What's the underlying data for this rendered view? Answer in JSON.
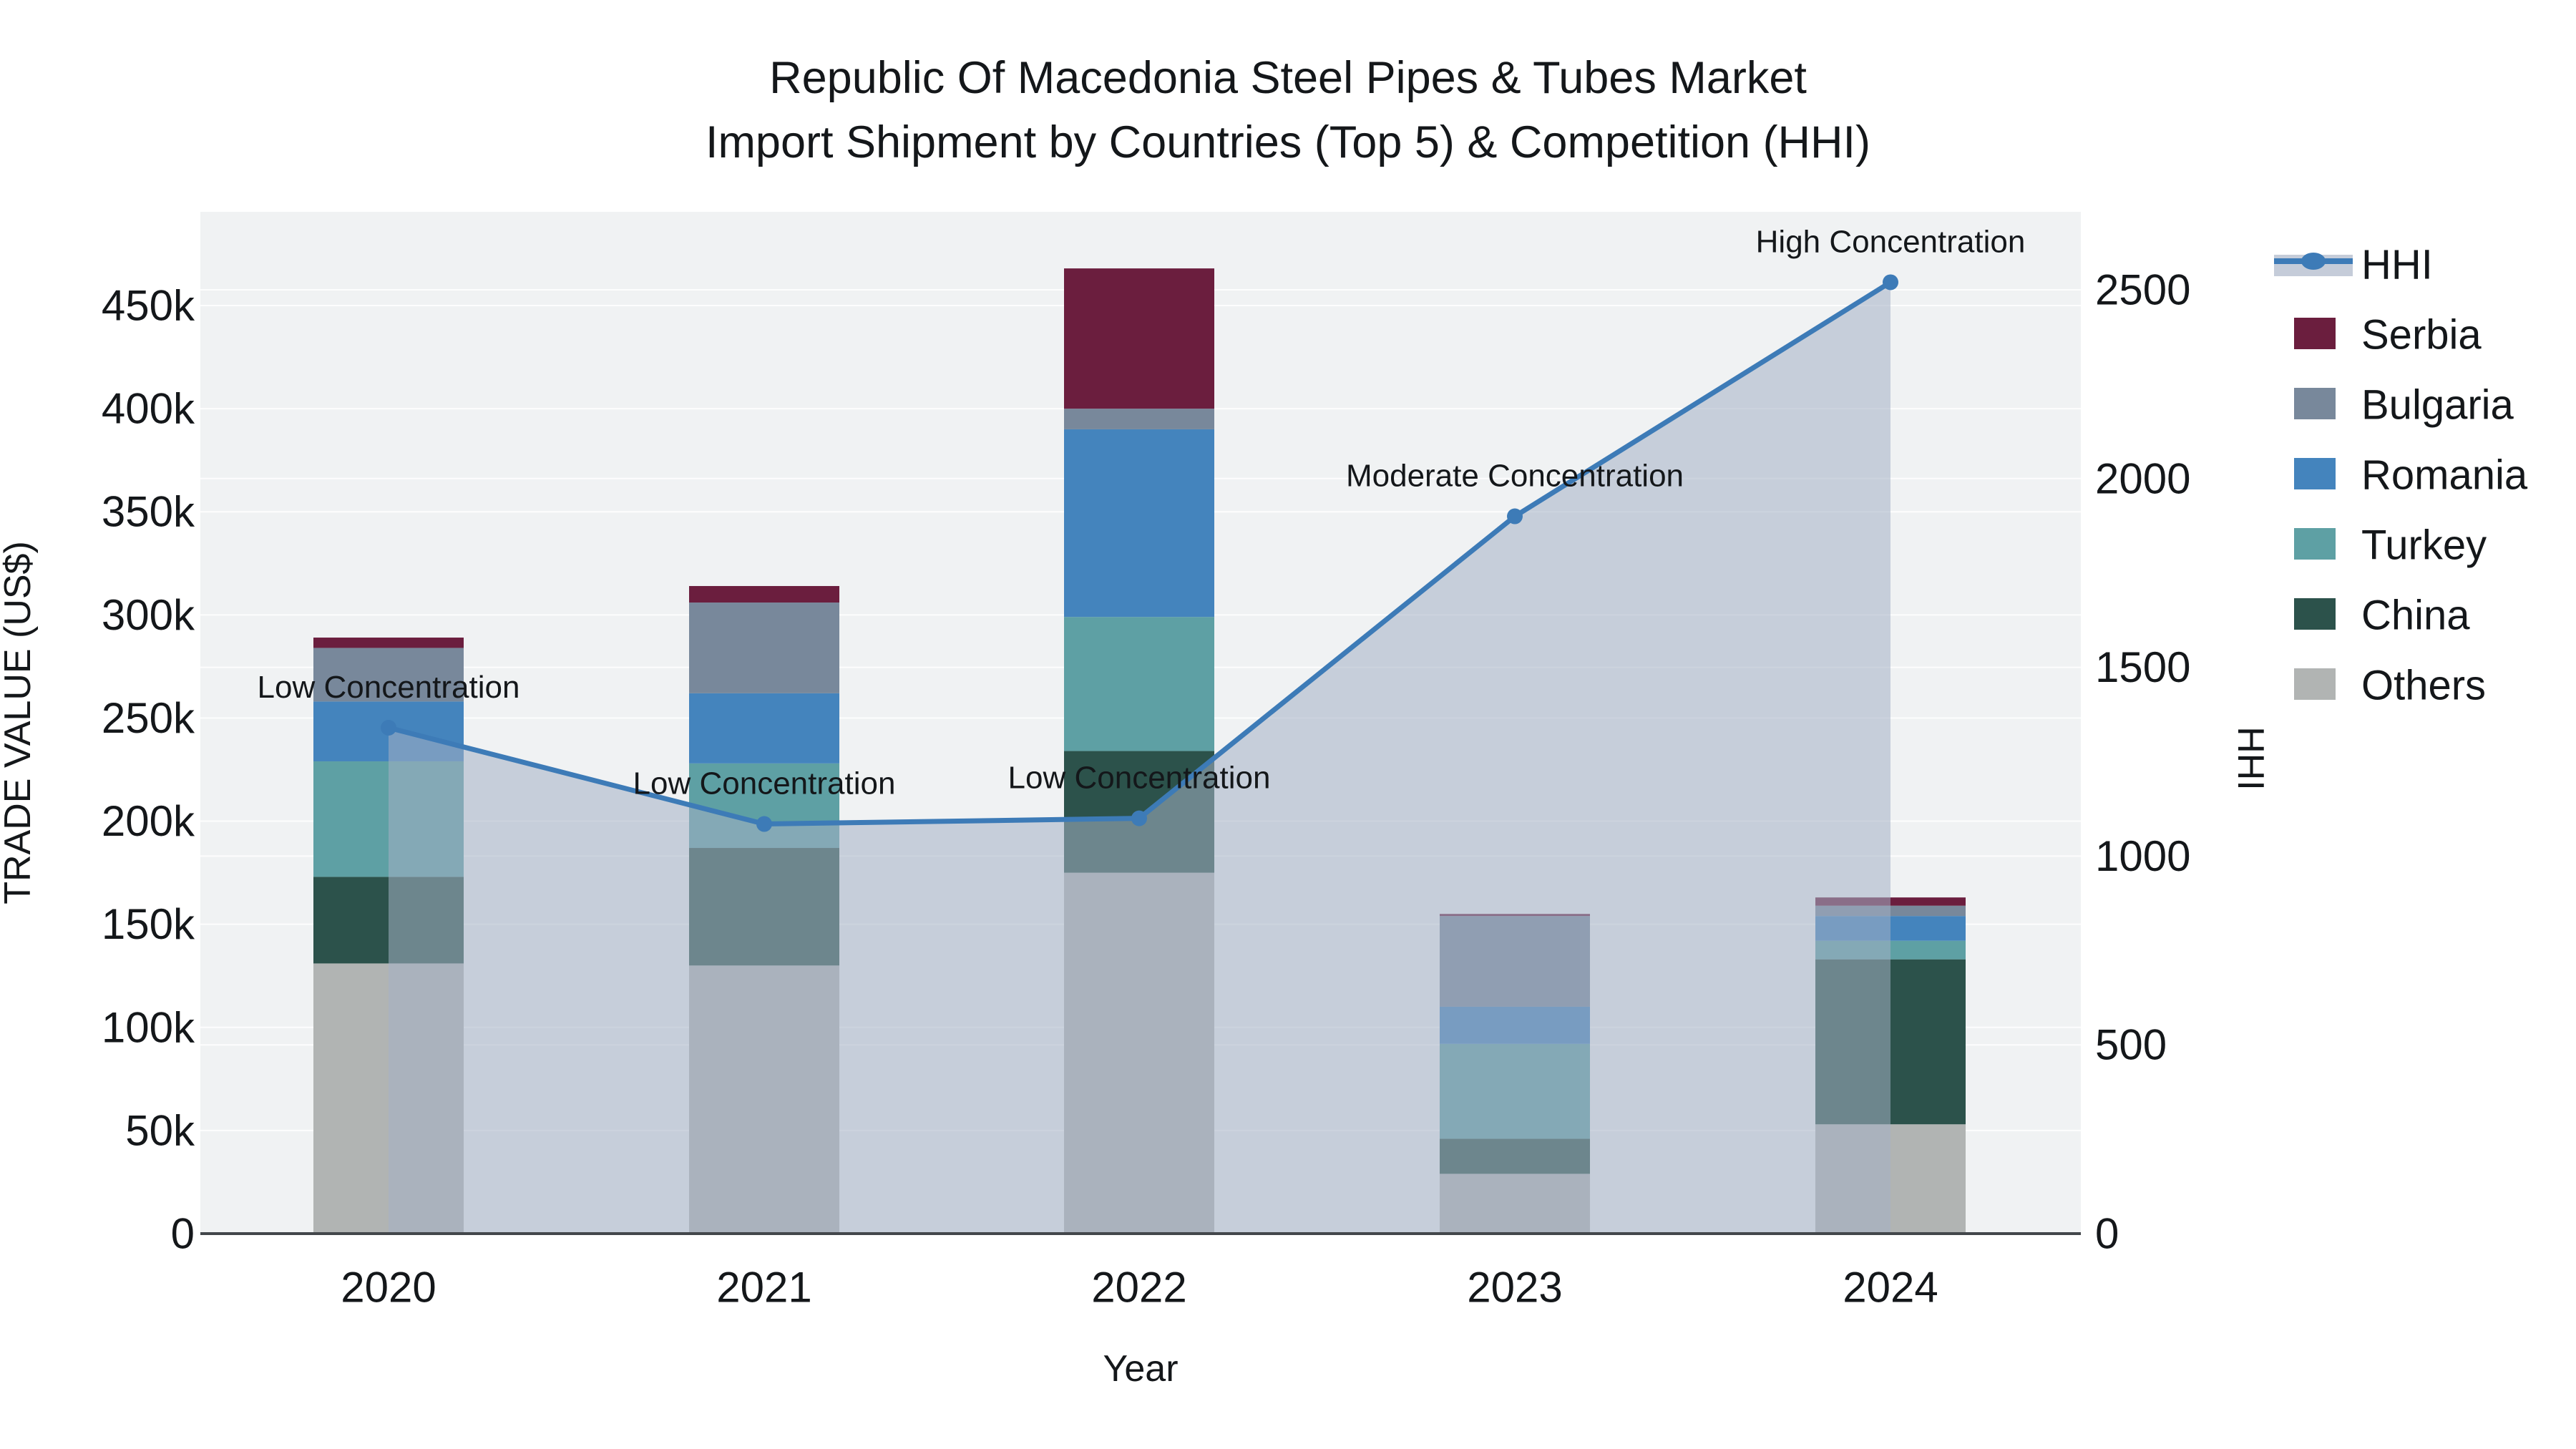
{
  "title": {
    "line1": "Republic Of Macedonia Steel Pipes & Tubes Market",
    "line2": "Import Shipment by Countries (Top 5) & Competition (HHI)"
  },
  "chart_data": {
    "type": "bar",
    "subtype": "stacked-bar-with-line",
    "categories": [
      "2020",
      "2021",
      "2022",
      "2023",
      "2024"
    ],
    "x_axis": {
      "title": "Year"
    },
    "left_axis": {
      "title": "TRADE VALUE (US$)",
      "range": [
        0,
        495000
      ],
      "ticks": [
        {
          "value": 0,
          "label": "0"
        },
        {
          "value": 50000,
          "label": "50k"
        },
        {
          "value": 100000,
          "label": "100k"
        },
        {
          "value": 150000,
          "label": "150k"
        },
        {
          "value": 200000,
          "label": "200k"
        },
        {
          "value": 250000,
          "label": "250k"
        },
        {
          "value": 300000,
          "label": "300k"
        },
        {
          "value": 350000,
          "label": "350k"
        },
        {
          "value": 400000,
          "label": "400k"
        },
        {
          "value": 450000,
          "label": "450k"
        }
      ]
    },
    "right_axis": {
      "title": "HHI",
      "range": [
        0,
        2706
      ],
      "ticks": [
        {
          "value": 0,
          "label": "0"
        },
        {
          "value": 500,
          "label": "500"
        },
        {
          "value": 1000,
          "label": "1000"
        },
        {
          "value": 1500,
          "label": "1500"
        },
        {
          "value": 2000,
          "label": "2000"
        },
        {
          "value": 2500,
          "label": "2500"
        }
      ]
    },
    "series": [
      {
        "name": "Others",
        "color": "#B1B4B3",
        "values": [
          131000,
          130000,
          175000,
          29000,
          53000
        ]
      },
      {
        "name": "China",
        "color": "#2C524B",
        "values": [
          42000,
          57000,
          59000,
          17000,
          80000
        ]
      },
      {
        "name": "Turkey",
        "color": "#5EA0A4",
        "values": [
          56000,
          41000,
          65000,
          46000,
          9000
        ]
      },
      {
        "name": "Romania",
        "color": "#4484BD",
        "values": [
          29000,
          34000,
          91000,
          18000,
          12000
        ]
      },
      {
        "name": "Bulgaria",
        "color": "#78889B",
        "values": [
          26000,
          44000,
          10000,
          44000,
          5000
        ]
      },
      {
        "name": "Serbia",
        "color": "#6B1E3E",
        "values": [
          5000,
          8000,
          68000,
          1000,
          4000
        ]
      }
    ],
    "totals": [
      289000,
      314000,
      468000,
      155000,
      163000
    ],
    "hhi_line": {
      "name": "HHI",
      "values": [
        1340,
        1085,
        1100,
        1900,
        2520
      ],
      "line_color": "#3D7BB7",
      "fill_color": "rgba(164,177,196,0.55)",
      "legend_band_color": "#C5CCD9"
    },
    "annotations": [
      {
        "category": "2020",
        "text": "Low Concentration"
      },
      {
        "category": "2021",
        "text": "Low Concentration"
      },
      {
        "category": "2022",
        "text": "Low Concentration"
      },
      {
        "category": "2023",
        "text": "Moderate Concentration"
      },
      {
        "category": "2024",
        "text": "High Concentration"
      }
    ],
    "legend": [
      {
        "label": "HHI",
        "type": "line"
      },
      {
        "label": "Serbia",
        "type": "swatch",
        "color": "#6B1E3E"
      },
      {
        "label": "Bulgaria",
        "type": "swatch",
        "color": "#78889B"
      },
      {
        "label": "Romania",
        "type": "swatch",
        "color": "#4484BD"
      },
      {
        "label": "Turkey",
        "type": "swatch",
        "color": "#5EA0A4"
      },
      {
        "label": "China",
        "type": "swatch",
        "color": "#2C524B"
      },
      {
        "label": "Others",
        "type": "swatch",
        "color": "#B1B4B3"
      }
    ],
    "plot_background": "#F0F2F3",
    "gridline_color": "#FFFFFF",
    "axis_line_color": "#43474B",
    "legend_position": "right",
    "grid": true
  }
}
